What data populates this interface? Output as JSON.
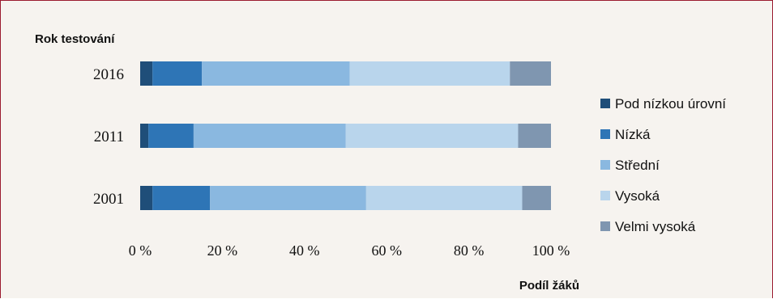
{
  "chart_data": {
    "type": "bar",
    "orientation": "horizontal",
    "stacked": true,
    "percent_stacked": true,
    "ylabel": "Rok testování",
    "xlabel": "Podíl žáků",
    "categories": [
      "2016",
      "2011",
      "2001"
    ],
    "xlim": [
      0,
      100
    ],
    "xticks": [
      "0 %",
      "20 %",
      "40 %",
      "60 %",
      "80 %",
      "100 %"
    ],
    "legend_position": "right",
    "grid": false,
    "series": [
      {
        "name": "Pod nízkou úrovní",
        "color": "#1f4e79",
        "values": [
          3,
          2,
          3
        ]
      },
      {
        "name": "Nízká",
        "color": "#2e75b6",
        "values": [
          12,
          11,
          14
        ]
      },
      {
        "name": "Střední",
        "color": "#8ab8e0",
        "values": [
          36,
          37,
          38
        ]
      },
      {
        "name": "Vysoká",
        "color": "#b9d5ec",
        "values": [
          39,
          42,
          38
        ]
      },
      {
        "name": "Velmi vysoká",
        "color": "#7f96b0",
        "values": [
          10,
          8,
          7
        ]
      }
    ]
  }
}
